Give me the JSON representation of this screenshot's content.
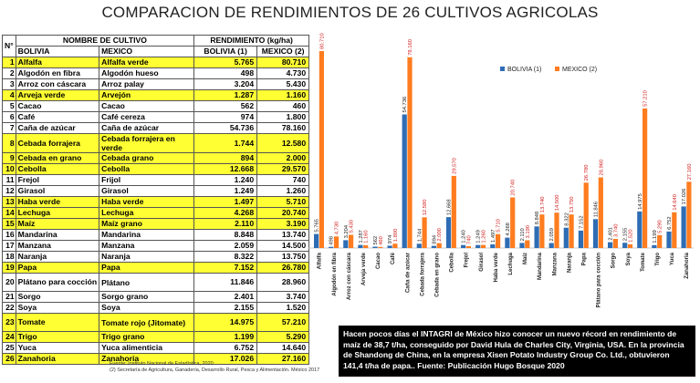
{
  "title": "COMPARACION DE RENDIMIENTOS DE 26 CULTIVOS AGRICOLAS",
  "table": {
    "header": {
      "num": "N°",
      "name_group": "NOMBRE DE CULTIVO",
      "yield_group": "RENDIMIENTO (kg/ha)",
      "bolivia": "BOLIVIA",
      "mexico": "MEXICO",
      "bolivia_yield": "BOLIVIA (1)",
      "mexico_yield": "MEXICO (2)"
    },
    "rows": [
      {
        "n": "1",
        "bo": "Alfalfa",
        "mx": "Alfalfa verde",
        "vb": "5.765",
        "vm": "80.710",
        "hl": true
      },
      {
        "n": "2",
        "bo": "Algodón en fibra",
        "mx": "Algodón hueso",
        "vb": "498",
        "vm": "4.730",
        "hl": false
      },
      {
        "n": "3",
        "bo": "Arroz con cáscara",
        "mx": "Arroz palay",
        "vb": "3.204",
        "vm": "5.430",
        "hl": false
      },
      {
        "n": "4",
        "bo": "Arveja verde",
        "mx": "Arvejón",
        "vb": "1.287",
        "vm": "1.160",
        "hl": true
      },
      {
        "n": "5",
        "bo": "Cacao",
        "mx": "Cacao",
        "vb": "562",
        "vm": "460",
        "hl": false
      },
      {
        "n": "6",
        "bo": "Café",
        "mx": "Café cereza",
        "vb": "974",
        "vm": "1.800",
        "hl": false
      },
      {
        "n": "7",
        "bo": "Caña de azúcar",
        "mx": "Caña de azúcar",
        "vb": "54.736",
        "vm": "78.160",
        "hl": false
      },
      {
        "n": "8",
        "bo": "Cebada forrajera",
        "mx": "Cebada forrajera en verde",
        "vb": "1.744",
        "vm": "12.580",
        "hl": true,
        "tall": true
      },
      {
        "n": "9",
        "bo": "Cebada en grano",
        "mx": "Cebada grano",
        "vb": "894",
        "vm": "2.000",
        "hl": true
      },
      {
        "n": "10",
        "bo": "Cebolla",
        "mx": "Cebolla",
        "vb": "12.668",
        "vm": "29.570",
        "hl": true
      },
      {
        "n": "11",
        "bo": "Frejol",
        "mx": "Frijol",
        "vb": "1.240",
        "vm": "740",
        "hl": false
      },
      {
        "n": "12",
        "bo": "Girasol",
        "mx": "Girasol",
        "vb": "1.249",
        "vm": "1.260",
        "hl": false
      },
      {
        "n": "13",
        "bo": "Haba verde",
        "mx": "Haba verde",
        "vb": "1.497",
        "vm": "5.710",
        "hl": true
      },
      {
        "n": "14",
        "bo": "Lechuga",
        "mx": "Lechuga",
        "vb": "4.268",
        "vm": "20.740",
        "hl": true
      },
      {
        "n": "15",
        "bo": "Maíz",
        "mx": "Maíz grano",
        "vb": "2.110",
        "vm": "3.190",
        "hl": true
      },
      {
        "n": "16",
        "bo": "Mandarina",
        "mx": "Mandarina",
        "vb": "8.848",
        "vm": "13.740",
        "hl": false
      },
      {
        "n": "17",
        "bo": "Manzana",
        "mx": "Manzana",
        "vb": "2.059",
        "vm": "14.500",
        "hl": false
      },
      {
        "n": "18",
        "bo": "Naranja",
        "mx": "Naranja",
        "vb": "8.322",
        "vm": "13.750",
        "hl": false
      },
      {
        "n": "19",
        "bo": "Papa",
        "mx": "Papa",
        "vb": "7.152",
        "vm": "26.780",
        "hl": true
      },
      {
        "n": "20",
        "bo": "Plátano para cocción",
        "mx": "Plátano",
        "vb": "11.846",
        "vm": "28.960",
        "hl": false,
        "tall": true
      },
      {
        "n": "21",
        "bo": "Sorgo",
        "mx": "Sorgo grano",
        "vb": "2.401",
        "vm": "3.740",
        "hl": false
      },
      {
        "n": "22",
        "bo": "Soya",
        "mx": "Soya",
        "vb": "2.155",
        "vm": "1.520",
        "hl": false
      },
      {
        "n": "23",
        "bo": "Tomate",
        "mx": "Tomate rojo (Jitomate)",
        "vb": "14.975",
        "vm": "57.210",
        "hl": true,
        "tall": true
      },
      {
        "n": "24",
        "bo": "Trigo",
        "mx": "Trigo grano",
        "vb": "1.199",
        "vm": "5.290",
        "hl": true
      },
      {
        "n": "25",
        "bo": "Yuca",
        "mx": "Yuca alimenticia",
        "vb": "6.752",
        "vm": "14.640",
        "hl": false
      },
      {
        "n": "26",
        "bo": "Zanahoria",
        "mx": "Zanahoria",
        "vb": "17.026",
        "vm": "27.160",
        "hl": true
      }
    ]
  },
  "sources": [
    "Fuente: Instituto Nacional de Estadística, 2020",
    "(2) Secretaría de Agricultura, Ganadería, Desarrollo Rural, Pesca y Alimentación. México 2017"
  ],
  "note": "Hacen pocos días el INTAGRI de México hizo conocer un nuevo récord en rendimiento de maíz de 38,7 t/ha, conseguido por David Hula de Charles City, Virginia, USA. En la provincia de Shandong de China, en la empresa Xisen Potato Industry Group Co. Ltd., obtuvieron 141,4 t/ha de papa..    Fuente: Publicación  Hugo Bosque 2020",
  "colors": {
    "bolivia": "#2e6db4",
    "mexico": "#ff7c1f",
    "highlight": "#ffff33",
    "label_red": "#d22020"
  },
  "chart_data": {
    "type": "bar",
    "categories": [
      "Alfalfa",
      "Algodón en fibra",
      "Arroz con cáscara",
      "Arveja verde",
      "Cacao",
      "Café",
      "Caña de azúcar",
      "Cebada forrajera",
      "Cebada en grano",
      "Cebolla",
      "Frejol",
      "Girasol",
      "Haba verde",
      "Lechuga",
      "Maíz",
      "Mandarina",
      "Manzana",
      "Naranja",
      "Papa",
      "Plátano para cocción",
      "Sorgo",
      "Soya",
      "Tomate",
      "Trigo",
      "Yuca",
      "Zanahoria"
    ],
    "series": [
      {
        "name": "BOLIVIA (1)",
        "values": [
          5765,
          498,
          3204,
          1287,
          562,
          974,
          54736,
          1744,
          894,
          12668,
          1240,
          1249,
          1497,
          4268,
          2110,
          8848,
          2059,
          8322,
          7152,
          11846,
          2401,
          2155,
          14975,
          1199,
          6752,
          17026
        ],
        "labels": [
          "5.765",
          "498",
          "3.204",
          "1.287",
          "562",
          "974",
          "54.736",
          "1.744",
          "894",
          "12.668",
          "1.240",
          "1.249",
          "1.497",
          "4.268",
          "2.110",
          "8.848",
          "2.059",
          "8.322",
          "7.152",
          "11.846",
          "2.401",
          "2.155",
          "14.975",
          "1.199",
          "6.752",
          "17.026"
        ]
      },
      {
        "name": "MEXICO (2)",
        "values": [
          80710,
          4730,
          5430,
          1160,
          460,
          1800,
          78160,
          12580,
          2000,
          29570,
          740,
          1260,
          5710,
          20740,
          3190,
          13740,
          14500,
          13750,
          26780,
          28960,
          3740,
          1520,
          57210,
          5290,
          14640,
          27160
        ],
        "labels": [
          "80.710",
          "4.730",
          "5.430",
          "1.160",
          "460",
          "1.800",
          "78.160",
          "12.580",
          "2.000",
          "29.570",
          "740",
          "1.260",
          "5.710",
          "20.740",
          "3.190",
          "13.740",
          "14.500",
          "13.750",
          "26.780",
          "28.960",
          "3.740",
          "1.520",
          "57.210",
          "5.290",
          "14.640",
          "27.160"
        ]
      }
    ],
    "ylim": [
      0,
      80710
    ],
    "legend": "top-right",
    "grid": false
  }
}
